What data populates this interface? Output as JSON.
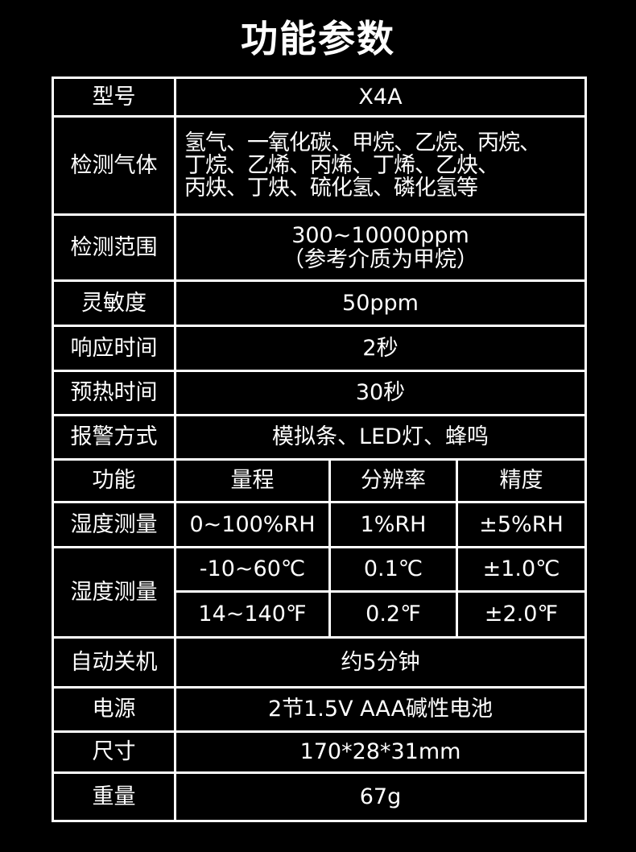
{
  "title": "功能参数",
  "rows": [
    {
      "label": "型号",
      "value": "X4A"
    },
    {
      "label": "检测气体",
      "lines": [
        "氢气、一氧化碳、甲烷、乙烷、丙烷、",
        "丁烷、乙烯、丙烯、丁烯、乙炔、",
        "丙炔、丁炔、硫化氢、磷化氢等"
      ]
    },
    {
      "label": "检测范围",
      "lines": [
        "300~10000ppm",
        "（参考介质为甲烷）"
      ]
    },
    {
      "label": "灵敏度",
      "value": "50ppm"
    },
    {
      "label": "响应时间",
      "value": "2秒"
    },
    {
      "label": "预热时间",
      "value": "30秒"
    },
    {
      "label": "报警方式",
      "value": "模拟条、LED灯、蜂鸣"
    }
  ],
  "measure": {
    "headers": [
      "功能",
      "量程",
      "分辨率",
      "精度"
    ],
    "humidity": {
      "label": "湿度测量",
      "range": "0~100%RH",
      "resolution": "1%RH",
      "accuracy": "±5%RH"
    },
    "temperature": {
      "label": "湿度测量",
      "celsius": {
        "range": "-10~60℃",
        "resolution": "0.1℃",
        "accuracy": "±1.0℃"
      },
      "fahrenheit": {
        "range": "14~140℉",
        "resolution": "0.2℉",
        "accuracy": "±2.0℉"
      }
    }
  },
  "rows2": [
    {
      "label": "自动关机",
      "value": "约5分钟"
    },
    {
      "label": "电源",
      "value": "2节1.5V AAA碱性电池"
    },
    {
      "label": "尺寸",
      "value": "170*28*31mm"
    },
    {
      "label": "重量",
      "value": "67g"
    }
  ]
}
